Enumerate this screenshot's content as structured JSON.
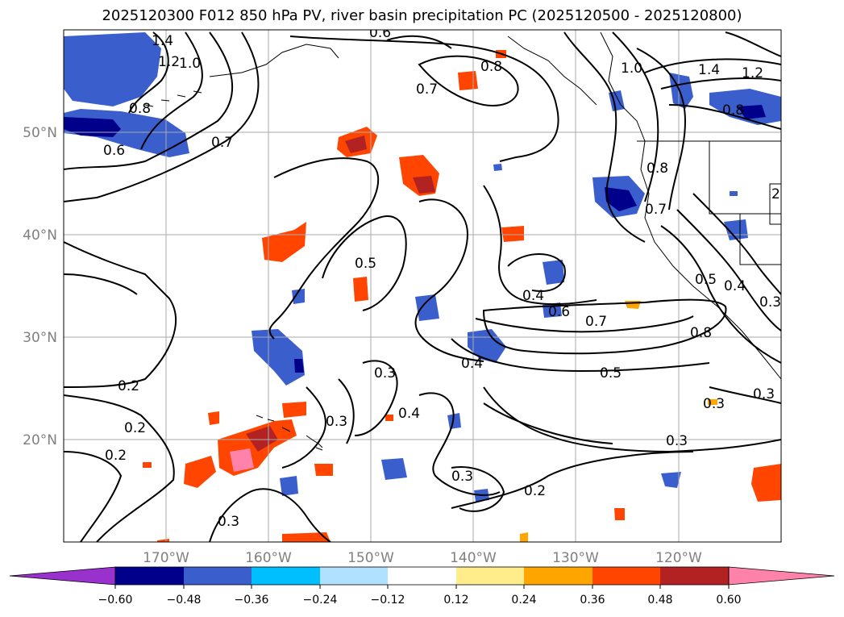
{
  "title": "2025120300 F012 850 hPa PV, river basin precipitation PC (2025120500 - 2025120800)",
  "map": {
    "lon_range": [
      -180,
      -110
    ],
    "lat_range": [
      10,
      60
    ],
    "lon_ticks": [
      "170°W",
      "160°W",
      "150°W",
      "140°W",
      "130°W",
      "120°W"
    ],
    "lat_ticks": [
      "20°N",
      "30°N",
      "40°N",
      "50°N"
    ],
    "grid": true,
    "contour_field": "850 hPa PV",
    "contour_labels": [
      "1.4",
      "1.2",
      "1.0",
      "0.8",
      "0.6",
      "0.7",
      "0.6",
      "0.7",
      "0.8",
      "1.0",
      "1.4",
      "1.2",
      "0.8",
      "0.8",
      "0.7",
      "0.5",
      "0.4",
      "0.5",
      "0.4",
      "0.3",
      "0.6",
      "0.7",
      "0.4",
      "0.5",
      "0.3",
      "0.3",
      "0.4",
      "0.3",
      "0.2",
      "0.2",
      "0.2",
      "0.3",
      "0.3",
      "0.2",
      "0.3",
      "0.8",
      "0.3",
      "2"
    ]
  },
  "colorbar": {
    "tick_labels": [
      "−0.60",
      "−0.48",
      "−0.36",
      "−0.24",
      "−0.12",
      "0.12",
      "0.24",
      "0.36",
      "0.48",
      "0.60"
    ],
    "colors": [
      "#9932cc",
      "#00008b",
      "#3a5fcd",
      "#00bfff",
      "#b0e2ff",
      "#ffffff",
      "#ffec8b",
      "#ffa500",
      "#ff4500",
      "#b22222",
      "#ff82ab"
    ],
    "extend": "both"
  }
}
